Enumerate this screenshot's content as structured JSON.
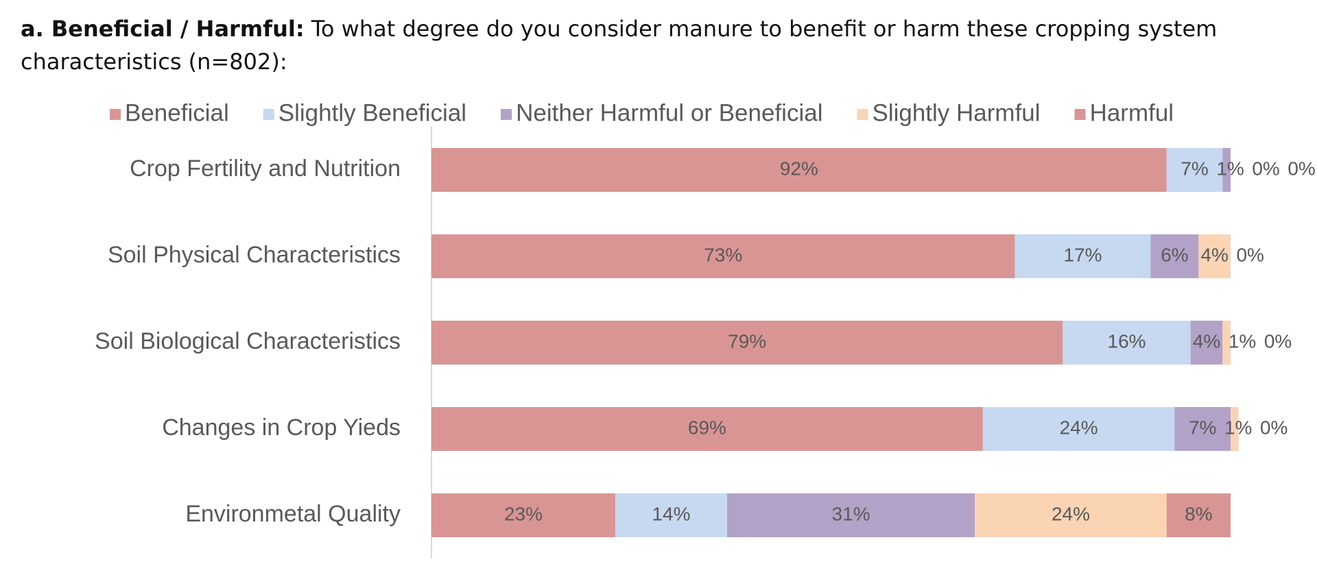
{
  "chart_data": {
    "type": "stacked-bar-horizontal",
    "title_label": "a. Beneficial / Harmful:",
    "title": "To what degree do you consider manure to benefit or harm these cropping system characteristics (n=802):",
    "categories": [
      "Crop Fertility and Nutrition",
      "Soil Physical Characteristics",
      "Soil Biological Characteristics",
      "Changes in Crop Yieds",
      "Environmetal Quality"
    ],
    "xlim": [
      0,
      100
    ],
    "legend": "top",
    "series": [
      {
        "name": "Beneficial",
        "color": "#d99594",
        "values": [
          92,
          73,
          79,
          69,
          23
        ],
        "value_labels": [
          "92%",
          "73%",
          "79%",
          "69%",
          "23%"
        ]
      },
      {
        "name": "Slightly Beneficial",
        "color": "#c6d9f1",
        "values": [
          7,
          17,
          16,
          24,
          14
        ],
        "value_labels": [
          "7%",
          "17%",
          "16%",
          "24%",
          "14%"
        ]
      },
      {
        "name": "Neither Harmful or Beneficial",
        "color": "#b2a2c7",
        "values": [
          1,
          6,
          4,
          7,
          31
        ],
        "value_labels": [
          "1%",
          "6%",
          "4%",
          "7%",
          "31%"
        ]
      },
      {
        "name": "Slightly Harmful",
        "color": "#fbd4b4",
        "values": [
          0,
          4,
          1,
          1,
          24
        ],
        "value_labels": [
          "0%",
          "4%",
          "1%",
          "1%",
          "24%"
        ]
      },
      {
        "name": "Harmful",
        "color": "#d99594",
        "values": [
          0,
          0,
          0,
          0,
          8
        ],
        "value_labels": [
          "0%",
          "0%",
          "0%",
          "0%",
          "8%"
        ]
      }
    ]
  }
}
